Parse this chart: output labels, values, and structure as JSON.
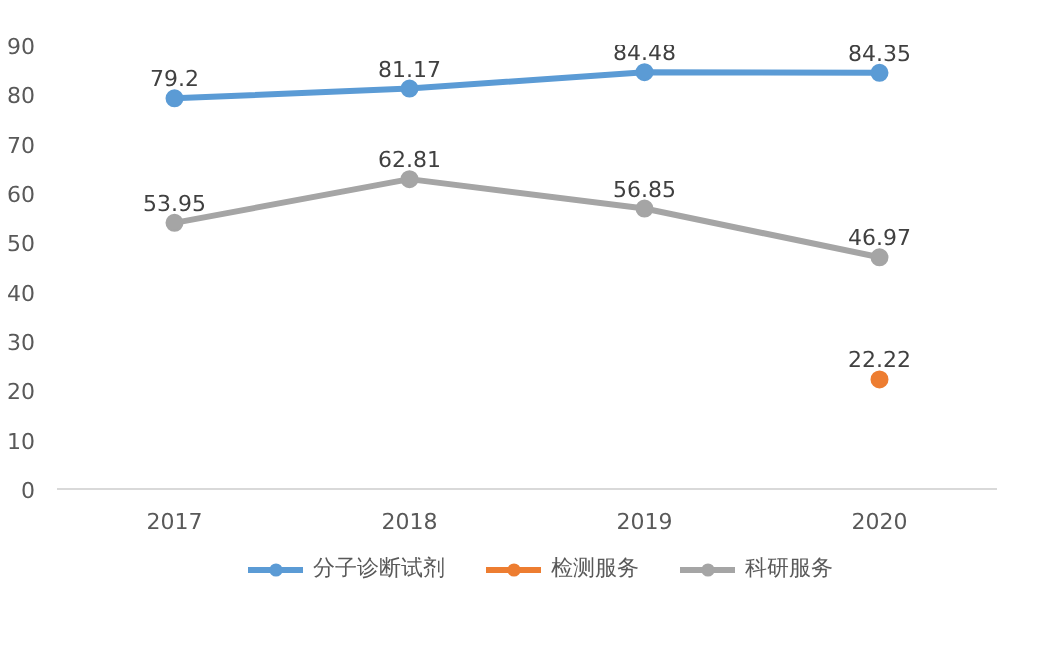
{
  "chart_data": {
    "type": "line",
    "categories": [
      "2017",
      "2018",
      "2019",
      "2020"
    ],
    "series": [
      {
        "name": "分子诊断试剂",
        "color": "#5b9bd5",
        "values": [
          79.2,
          81.17,
          84.48,
          84.35
        ]
      },
      {
        "name": "检测服务",
        "color": "#ed7d31",
        "values": [
          null,
          null,
          null,
          22.22
        ]
      },
      {
        "name": "科研服务",
        "color": "#a5a5a5",
        "values": [
          53.95,
          62.81,
          56.85,
          46.97
        ]
      }
    ],
    "ylim": [
      0,
      90
    ],
    "yticks": [
      0,
      10,
      20,
      30,
      40,
      50,
      60,
      70,
      80,
      90
    ],
    "grid": false,
    "legend": "bottom",
    "marker": "circle",
    "line_style": "solid",
    "data_labels": true
  }
}
